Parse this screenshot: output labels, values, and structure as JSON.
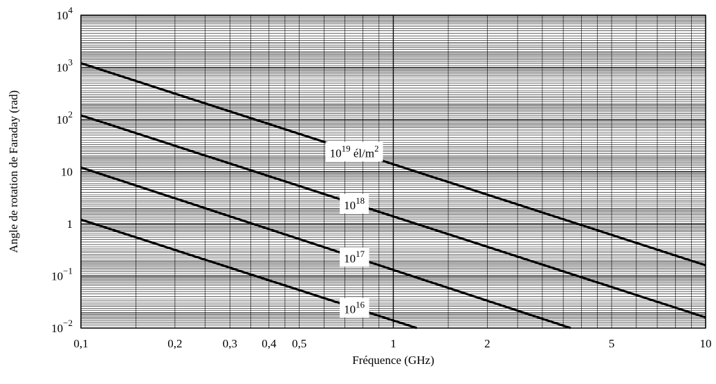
{
  "chart_data": {
    "type": "line",
    "title": "",
    "xlabel": "Fréquence (GHz)",
    "ylabel": "Angle de rotation de Faraday (rad)",
    "x_scale": "log",
    "y_scale": "log",
    "xlim": [
      0.1,
      10
    ],
    "ylim": [
      0.01,
      10000
    ],
    "grid": true,
    "x_ticks": [
      {
        "value": 0.1,
        "label": "0,1"
      },
      {
        "value": 0.2,
        "label": "0,2"
      },
      {
        "value": 0.3,
        "label": "0,3"
      },
      {
        "value": 0.4,
        "label": "0,4"
      },
      {
        "value": 0.5,
        "label": "0,5"
      },
      {
        "value": 1,
        "label": "1"
      },
      {
        "value": 2,
        "label": "2"
      },
      {
        "value": 5,
        "label": "5"
      },
      {
        "value": 10,
        "label": "10"
      }
    ],
    "y_ticks": [
      {
        "value": 0.01,
        "base": "10",
        "exp": "−2"
      },
      {
        "value": 0.1,
        "base": "10",
        "exp": "−1"
      },
      {
        "value": 1,
        "base": "1",
        "exp": ""
      },
      {
        "value": 10,
        "base": "10",
        "exp": ""
      },
      {
        "value": 100,
        "base": "10",
        "exp": "2"
      },
      {
        "value": 1000,
        "base": "10",
        "exp": "3"
      },
      {
        "value": 10000,
        "base": "10",
        "exp": "4"
      }
    ],
    "series": [
      {
        "label_base": "10",
        "label_exp": "19",
        "label_suffix": " él/m",
        "label_suffix_exp": "2",
        "label_at_x": 0.75,
        "x": [
          0.1,
          10
        ],
        "y": [
          1200,
          0.16
        ]
      },
      {
        "label_base": "10",
        "label_exp": "18",
        "label_suffix": "",
        "label_suffix_exp": "",
        "label_at_x": 0.75,
        "x": [
          0.1,
          10
        ],
        "y": [
          120,
          0.016
        ]
      },
      {
        "label_base": "10",
        "label_exp": "17",
        "label_suffix": "",
        "label_suffix_exp": "",
        "label_at_x": 0.75,
        "x": [
          0.1,
          3.7
        ],
        "y": [
          12,
          0.01
        ]
      },
      {
        "label_base": "10",
        "label_exp": "16",
        "label_suffix": "",
        "label_suffix_exp": "",
        "label_at_x": 0.75,
        "x": [
          0.1,
          1.19
        ],
        "y": [
          1.2,
          0.01
        ]
      }
    ]
  }
}
